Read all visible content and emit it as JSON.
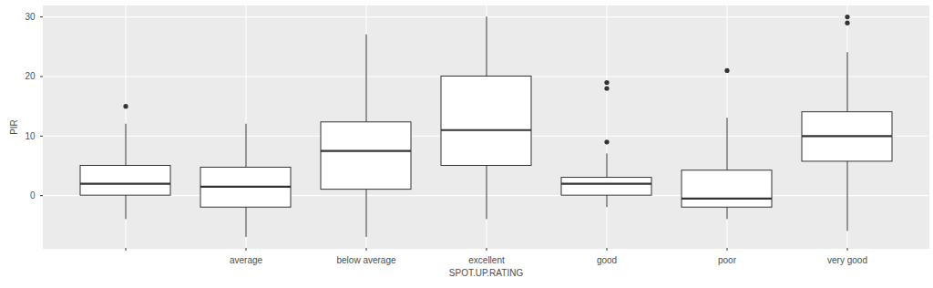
{
  "chart_data": {
    "type": "box",
    "x_label": "SPOT.UP.RATING",
    "y_label": "PIR",
    "categories": [
      null,
      "average",
      "below average",
      "excellent",
      "good",
      "poor",
      "very good"
    ],
    "min": [
      -4,
      -7,
      -7,
      -4,
      -2,
      -4,
      -6
    ],
    "q1": [
      0,
      -2,
      1,
      5,
      0,
      -2,
      5.7
    ],
    "median": [
      2,
      1.5,
      7.5,
      11,
      2,
      -0.5,
      10
    ],
    "q3": [
      5,
      4.7,
      12.3,
      20,
      3,
      4.2,
      14
    ],
    "max": [
      12,
      12,
      27,
      30,
      7,
      13,
      24
    ],
    "outliers": [
      [
        15
      ],
      [],
      [],
      [],
      [
        9,
        18,
        19
      ],
      [
        21
      ],
      [
        29,
        30
      ]
    ],
    "ylim": [
      -8.85,
      31.85
    ],
    "yticks": [
      0,
      10,
      20,
      30
    ],
    "grid": true
  }
}
